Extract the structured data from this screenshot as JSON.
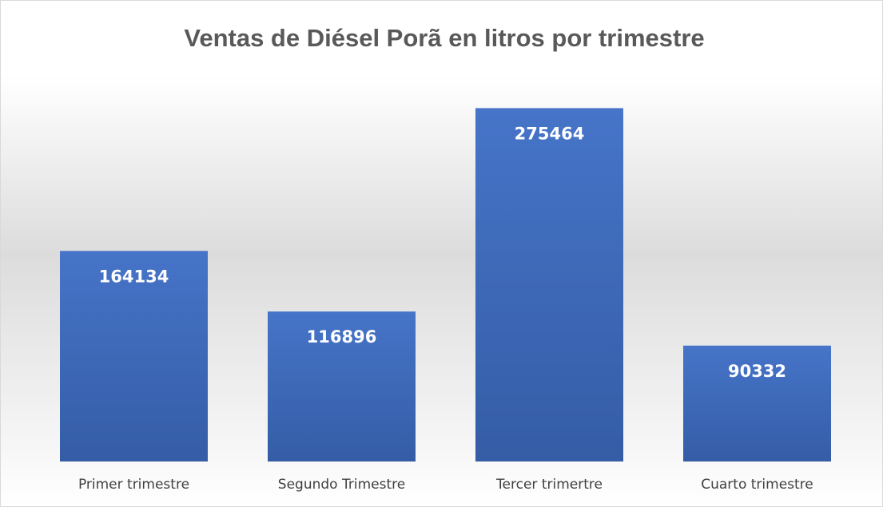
{
  "chart_data": {
    "type": "bar",
    "title": "Ventas de Diésel Porã en litros por trimestre",
    "categories": [
      "Primer trimestre",
      "Segundo Trimestre",
      "Tercer trimertre",
      "Cuarto trimestre"
    ],
    "values": [
      164134,
      116896,
      275464,
      90332
    ],
    "color": "#4472c4",
    "ylim": [
      0,
      300000
    ]
  }
}
